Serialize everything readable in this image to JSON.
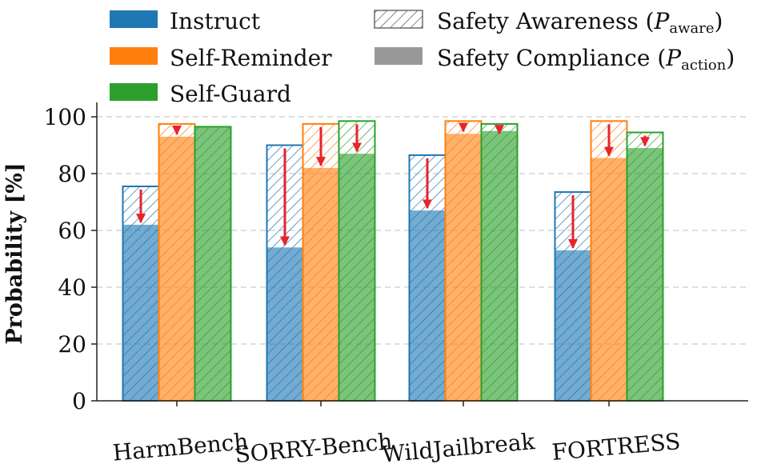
{
  "chart_data": {
    "type": "bar",
    "categories": [
      "HarmBench",
      "SORRY-Bench",
      "WildJailbreak",
      "FORTRESS"
    ],
    "series": [
      {
        "name": "Instruct",
        "color": "#1f77b4",
        "aware": [
          75.5,
          90,
          86.5,
          73.5
        ],
        "action": [
          62,
          54,
          67,
          53
        ]
      },
      {
        "name": "Self-Reminder",
        "color": "#ff7f0e",
        "aware": [
          97.5,
          97.5,
          98.5,
          98.5
        ],
        "action": [
          93,
          82,
          94,
          85.5
        ]
      },
      {
        "name": "Self-Guard",
        "color": "#2ca02c",
        "aware": [
          96.5,
          98.5,
          97.5,
          94.5
        ],
        "action": [
          96.5,
          87,
          95,
          89
        ]
      }
    ],
    "ylabel": "Probability [%]",
    "yticks": [
      0,
      20,
      40,
      60,
      80,
      100
    ],
    "ylim": [
      0,
      105
    ],
    "grid": "horizontal-dashed",
    "arrow_color": "#e8232a",
    "legend": {
      "placement": "top",
      "awareness_label": "Safety Awareness (",
      "compliance_label": "Safety Compliance (",
      "p": "P",
      "awareness_sub": "aware",
      "compliance_sub": "action",
      "close": ")"
    }
  }
}
